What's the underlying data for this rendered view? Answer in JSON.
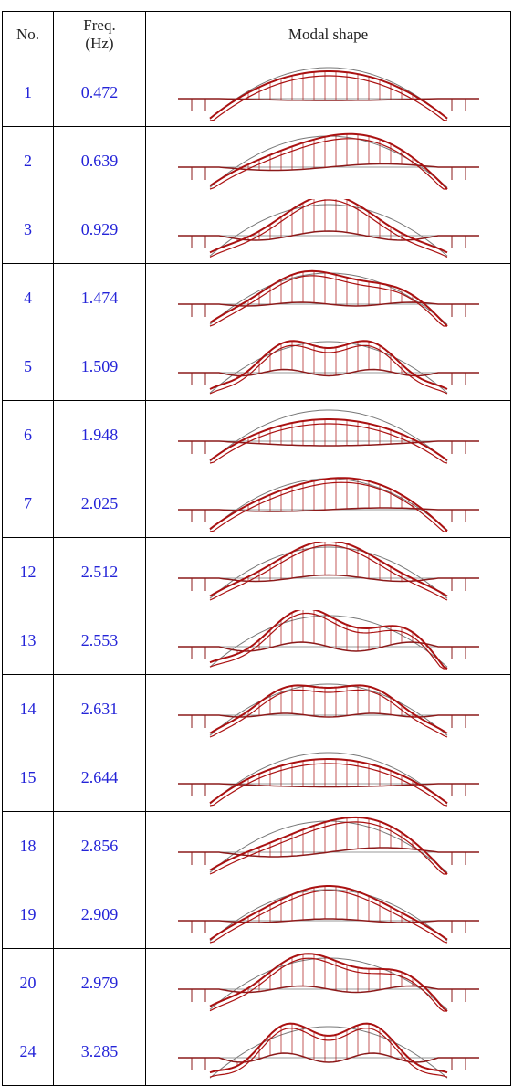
{
  "table": {
    "header": [
      "No.",
      "Freq. (Hz)",
      "Modal shape"
    ],
    "rows": [
      [
        1,
        0.472
      ],
      [
        2,
        0.639
      ],
      [
        3,
        0.929
      ],
      [
        4,
        1.474
      ],
      [
        5,
        1.509
      ],
      [
        6,
        1.948
      ],
      [
        7,
        2.025
      ],
      [
        12,
        2.512
      ],
      [
        13,
        2.553
      ],
      [
        14,
        2.631
      ],
      [
        15,
        2.644
      ],
      [
        18,
        2.856
      ],
      [
        19,
        2.909
      ],
      [
        20,
        2.979
      ],
      [
        24,
        3.285
      ]
    ]
  }
}
